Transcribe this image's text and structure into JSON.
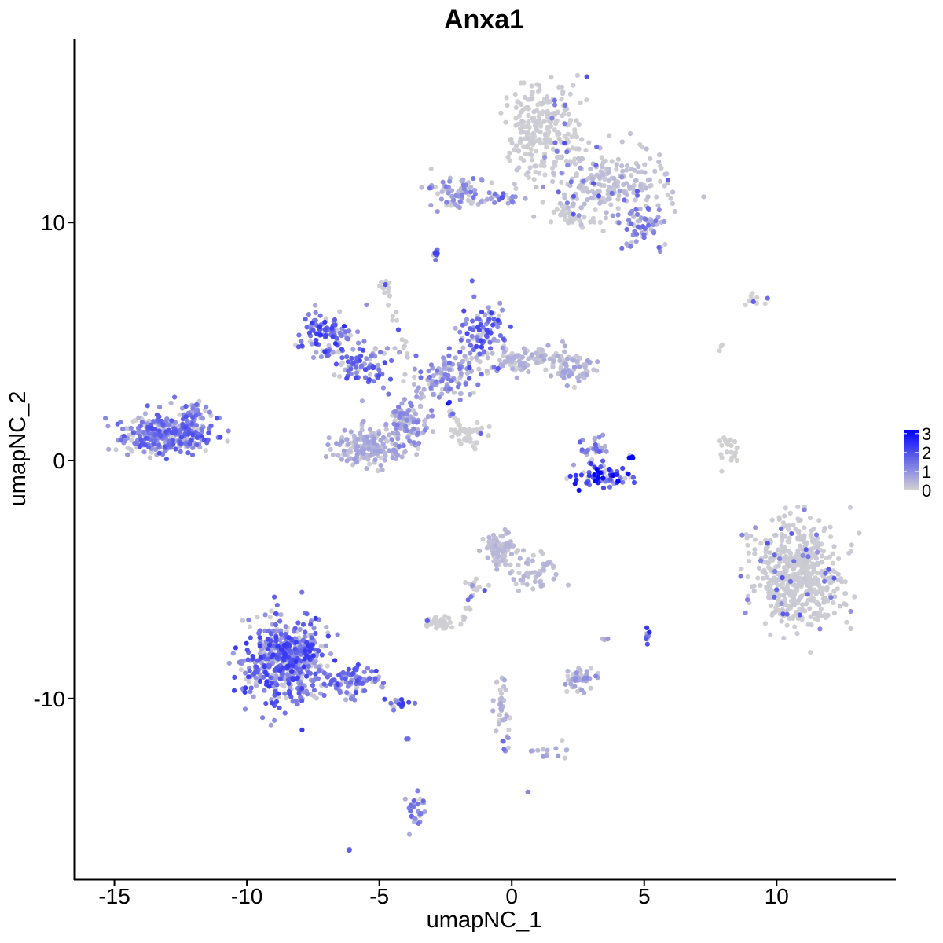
{
  "chart_data": {
    "type": "scatter",
    "title": "Anxa1",
    "xlabel": "umapNC_1",
    "ylabel": "umapNC_2",
    "xlim": [
      -16.5,
      14.5
    ],
    "ylim": [
      -17.6,
      17.7
    ],
    "x_ticks": [
      -15,
      -10,
      -5,
      0,
      5,
      10
    ],
    "x_tick_labels": [
      "-15",
      "-10",
      "-5",
      "0",
      "5",
      "10"
    ],
    "y_ticks": [
      -10,
      0,
      10
    ],
    "y_tick_labels": [
      "-10",
      "0",
      "10"
    ],
    "grid": false,
    "legend": {
      "placement": "right",
      "type": "colorbar",
      "min": 0,
      "max": 3.2,
      "ticks": [
        3,
        2,
        1,
        0
      ],
      "tick_labels": [
        "3",
        "2",
        "1",
        "0"
      ],
      "color_low": "#d3d3d3",
      "color_high": "#0000ff"
    },
    "clusters": [
      {
        "cx": 1.2,
        "cy": 13.8,
        "sx": 1.0,
        "sy": 1.3,
        "n": 260,
        "expr": 0.08
      },
      {
        "cx": 3.6,
        "cy": 11.6,
        "sx": 1.6,
        "sy": 0.9,
        "n": 220,
        "expr": 0.25
      },
      {
        "cx": 4.9,
        "cy": 9.9,
        "sx": 0.7,
        "sy": 0.6,
        "n": 60,
        "expr": 1.0
      },
      {
        "cx": -2.0,
        "cy": 11.3,
        "sx": 0.8,
        "sy": 0.5,
        "n": 70,
        "expr": 0.9
      },
      {
        "cx": -0.3,
        "cy": 11.1,
        "sx": 0.5,
        "sy": 0.2,
        "n": 25,
        "expr": 1.2
      },
      {
        "cx": 2.3,
        "cy": 10.3,
        "sx": 0.6,
        "sy": 0.3,
        "n": 30,
        "expr": 0.1
      },
      {
        "cx": -2.9,
        "cy": 8.7,
        "sx": 0.12,
        "sy": 0.15,
        "n": 10,
        "expr": 1.4
      },
      {
        "cx": -4.7,
        "cy": 7.3,
        "sx": 0.15,
        "sy": 0.2,
        "n": 12,
        "expr": 0.05
      },
      {
        "cx": -7.0,
        "cy": 5.2,
        "sx": 0.7,
        "sy": 0.6,
        "n": 110,
        "expr": 1.5
      },
      {
        "cx": -5.5,
        "cy": 4.0,
        "sx": 0.8,
        "sy": 0.5,
        "n": 80,
        "expr": 1.3
      },
      {
        "cx": -1.1,
        "cy": 5.3,
        "sx": 0.6,
        "sy": 0.9,
        "n": 100,
        "expr": 1.4
      },
      {
        "cx": -2.5,
        "cy": 3.5,
        "sx": 0.7,
        "sy": 0.7,
        "n": 110,
        "expr": 0.9
      },
      {
        "cx": 0.6,
        "cy": 4.2,
        "sx": 1.2,
        "sy": 0.4,
        "n": 110,
        "expr": 0.4
      },
      {
        "cx": 2.3,
        "cy": 3.8,
        "sx": 0.6,
        "sy": 0.4,
        "n": 60,
        "expr": 0.5
      },
      {
        "cx": -5.4,
        "cy": 0.6,
        "sx": 0.8,
        "sy": 0.6,
        "n": 160,
        "expr": 0.5
      },
      {
        "cx": -3.9,
        "cy": 1.6,
        "sx": 0.5,
        "sy": 0.8,
        "n": 110,
        "expr": 0.8
      },
      {
        "cx": -1.6,
        "cy": 1.2,
        "sx": 0.6,
        "sy": 0.3,
        "n": 30,
        "expr": 0.05
      },
      {
        "cx": -13.0,
        "cy": 1.1,
        "sx": 1.2,
        "sy": 0.55,
        "n": 360,
        "expr": 1.25
      },
      {
        "cx": -11.8,
        "cy": 2.0,
        "sx": 0.4,
        "sy": 0.4,
        "n": 30,
        "expr": 1.0
      },
      {
        "cx": 3.4,
        "cy": -0.7,
        "sx": 0.8,
        "sy": 0.3,
        "n": 70,
        "expr": 2.0
      },
      {
        "cx": 3.2,
        "cy": 0.4,
        "sx": 0.4,
        "sy": 0.4,
        "n": 30,
        "expr": 1.2
      },
      {
        "cx": 4.5,
        "cy": 0.15,
        "sx": 0.04,
        "sy": 0.06,
        "n": 6,
        "expr": 3.1
      },
      {
        "cx": 8.2,
        "cy": 0.3,
        "sx": 0.25,
        "sy": 0.6,
        "n": 25,
        "expr": 0.03
      },
      {
        "cx": 7.9,
        "cy": 4.7,
        "sx": 0.1,
        "sy": 0.2,
        "n": 3,
        "expr": 0.0
      },
      {
        "cx": 9.3,
        "cy": 6.8,
        "sx": 0.8,
        "sy": 0.15,
        "n": 10,
        "expr": 0.0
      },
      {
        "cx": 10.8,
        "cy": -4.7,
        "sx": 1.1,
        "sy": 1.5,
        "n": 560,
        "expr": 0.1
      },
      {
        "cx": -0.4,
        "cy": -3.7,
        "sx": 0.4,
        "sy": 0.5,
        "n": 90,
        "expr": 0.3
      },
      {
        "cx": 0.9,
        "cy": -4.6,
        "sx": 0.6,
        "sy": 0.6,
        "n": 50,
        "expr": 0.3
      },
      {
        "cx": -1.4,
        "cy": -5.4,
        "sx": 0.25,
        "sy": 0.4,
        "n": 15,
        "expr": 0.05
      },
      {
        "cx": -2.8,
        "cy": -6.8,
        "sx": 0.4,
        "sy": 0.2,
        "n": 40,
        "expr": 0.05
      },
      {
        "cx": -8.5,
        "cy": -8.4,
        "sx": 1.0,
        "sy": 1.2,
        "n": 560,
        "expr": 1.45
      },
      {
        "cx": -6.0,
        "cy": -9.3,
        "sx": 0.8,
        "sy": 0.4,
        "n": 90,
        "expr": 1.3
      },
      {
        "cx": -4.4,
        "cy": -10.2,
        "sx": 0.35,
        "sy": 0.2,
        "n": 20,
        "expr": 1.5
      },
      {
        "cx": 5.1,
        "cy": -7.3,
        "sx": 0.08,
        "sy": 0.2,
        "n": 14,
        "expr": 1.8
      },
      {
        "cx": 2.7,
        "cy": -9.2,
        "sx": 0.4,
        "sy": 0.35,
        "n": 45,
        "expr": 0.7
      },
      {
        "cx": 3.5,
        "cy": -7.5,
        "sx": 0.1,
        "sy": 0.1,
        "n": 4,
        "expr": 0.6
      },
      {
        "cx": -0.4,
        "cy": -10.3,
        "sx": 0.2,
        "sy": 0.7,
        "n": 20,
        "expr": 0.4
      },
      {
        "cx": -0.2,
        "cy": -11.8,
        "sx": 0.1,
        "sy": 0.3,
        "n": 8,
        "expr": 1.2
      },
      {
        "cx": 1.5,
        "cy": -12.3,
        "sx": 0.6,
        "sy": 0.2,
        "n": 15,
        "expr": 0.5
      },
      {
        "cx": -3.6,
        "cy": -14.7,
        "sx": 0.25,
        "sy": 0.5,
        "n": 30,
        "expr": 1.0
      },
      {
        "cx": -3.9,
        "cy": -11.7,
        "sx": 0.05,
        "sy": 0.05,
        "n": 3,
        "expr": 1.2
      },
      {
        "cx": -6.1,
        "cy": -16.3,
        "sx": 0.05,
        "sy": 0.05,
        "n": 3,
        "expr": 1.4
      },
      {
        "cx": 0.6,
        "cy": -13.9,
        "sx": 0.04,
        "sy": 0.04,
        "n": 2,
        "expr": 0.9
      }
    ],
    "trails": [
      {
        "x1": -2.4,
        "y1": 2.2,
        "x2": -1.4,
        "y2": 0.6,
        "n": 22,
        "expr": 0.0
      },
      {
        "x1": -4.8,
        "y1": 7.3,
        "x2": -3.9,
        "y2": 4.3,
        "n": 14,
        "expr": 0.1
      },
      {
        "x1": -1.5,
        "y1": -5.3,
        "x2": -1.9,
        "y2": -7.0,
        "n": 8,
        "expr": 0.1
      },
      {
        "x1": -0.5,
        "y1": -9.3,
        "x2": -0.3,
        "y2": -11.2,
        "n": 12,
        "expr": 0.4
      }
    ],
    "highlights": [
      {
        "x": -2.4,
        "y": 2.4,
        "expr": 3.1
      },
      {
        "x": -2.35,
        "y": 2.45,
        "expr": 2.6
      },
      {
        "x": 4.45,
        "y": 0.1,
        "expr": 3.2
      }
    ]
  }
}
